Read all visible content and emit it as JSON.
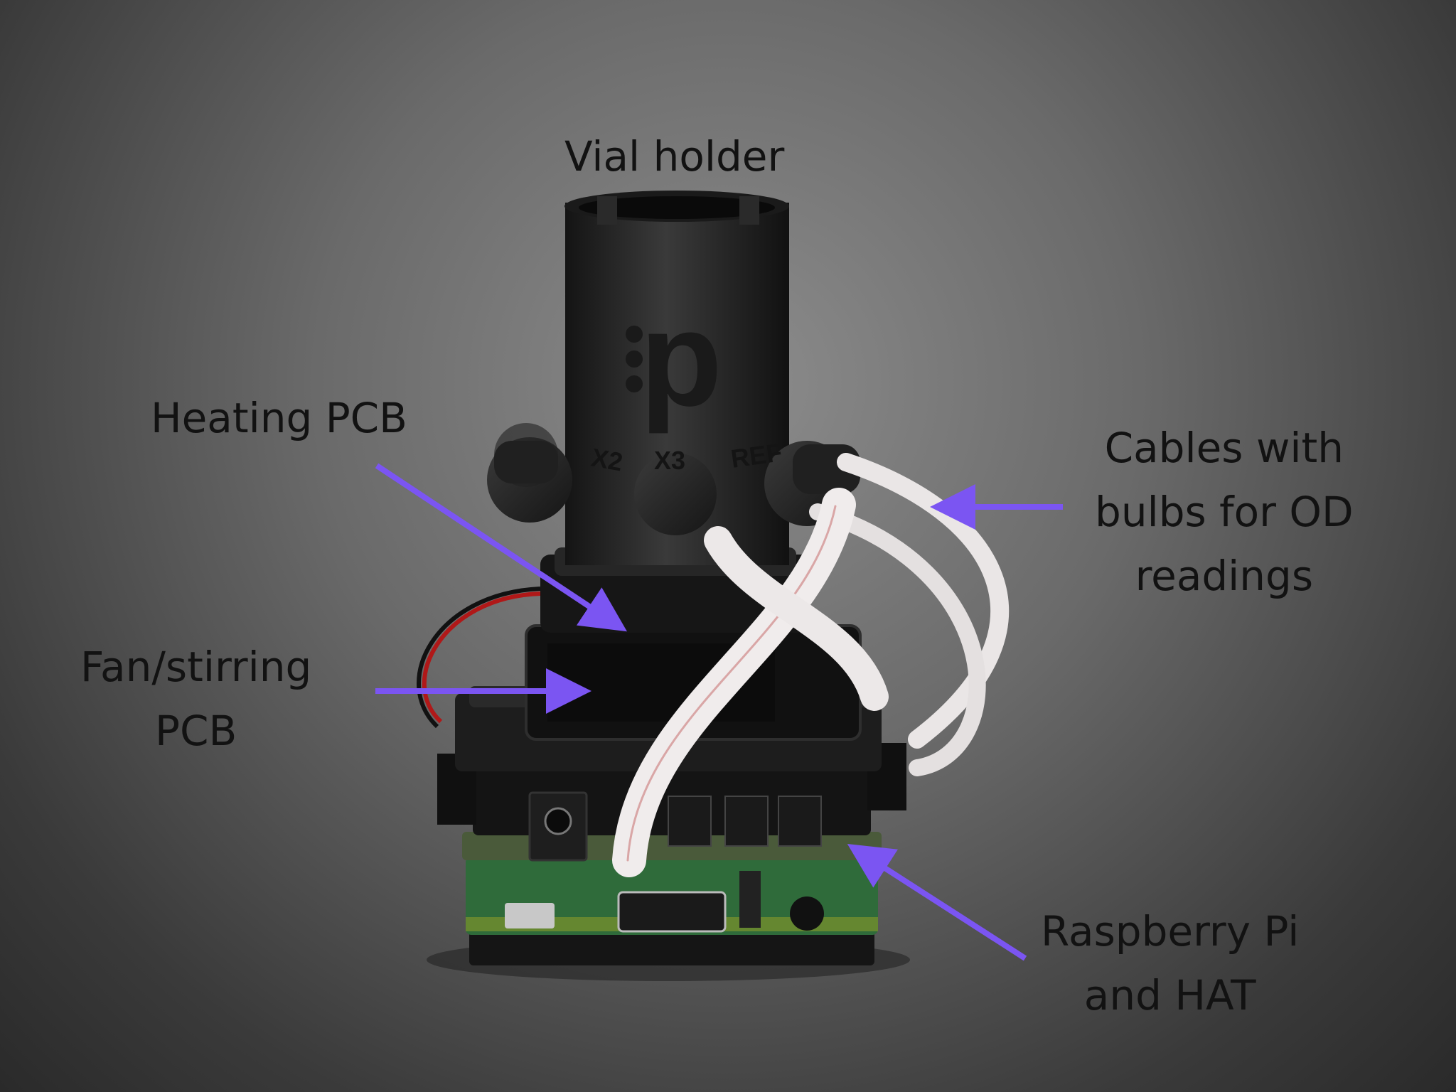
{
  "labels": {
    "vial_holder": "Vial holder",
    "heating_pcb": "Heating PCB",
    "fan_stirring": [
      "Fan/stirring",
      "PCB"
    ],
    "cables": [
      "Cables with",
      "bulbs for OD",
      "readings"
    ],
    "raspberry_pi": [
      "Raspberry Pi",
      "and HAT"
    ]
  },
  "device_markings": {
    "logo": "p",
    "ports": [
      "X2",
      "X3",
      "REF"
    ]
  },
  "colors": {
    "arrow": "#7b55f2",
    "background": "#6a6a6a",
    "device_body": "#1c1c1c",
    "pcb_green": "#2f6b3a"
  }
}
